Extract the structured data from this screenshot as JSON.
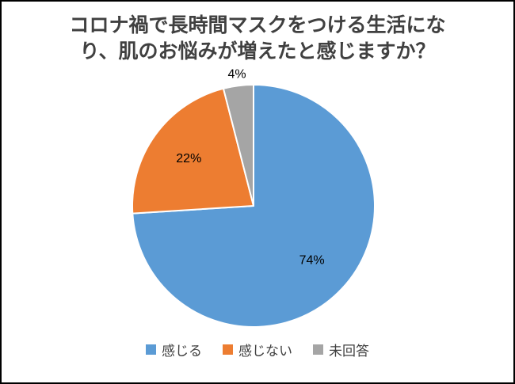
{
  "chart_data": {
    "type": "pie",
    "title": "コロナ禍で長時間マスクをつける生活になり、肌のお悩みが増えたと感じますか？",
    "categories": [
      "感じる",
      "感じない",
      "未回答"
    ],
    "values": [
      74,
      22,
      4
    ],
    "labels": [
      "74%",
      "22%",
      "4%"
    ],
    "colors": [
      "#5B9BD5",
      "#ED7D31",
      "#A5A5A5"
    ],
    "slice_border_color": "#FFFFFF",
    "label_color": "#000000",
    "title_color": "#404040",
    "legend_position": "bottom",
    "start_angle_deg": 0,
    "direction": "clockwise",
    "frame_border_color": "#000000"
  }
}
